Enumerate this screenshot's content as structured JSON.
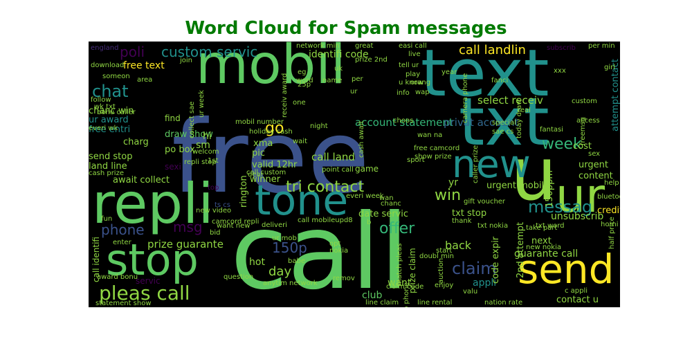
{
  "title": "Word Cloud for Spam messages",
  "colors": {
    "title": "#007a00",
    "background": "#000000",
    "palette": [
      "#3b528b",
      "#5ec962",
      "#21918c",
      "#fde725",
      "#2c728e",
      "#440154",
      "#31688e",
      "#35b779",
      "#90d743",
      "#472d7b"
    ]
  },
  "words": [
    "free",
    "call",
    "mobil",
    "text",
    "txt",
    "repli",
    "stop",
    "u",
    "ur",
    "tone",
    "send",
    "new",
    "pleas call",
    "custom servic",
    "chat",
    "claim",
    "tri contact",
    "messag",
    "call landlin",
    "msg",
    "150p",
    "phone",
    "offer",
    "week",
    "win",
    "go",
    "poli",
    "prize guarante",
    "guarante call",
    "free text",
    "select receiv",
    "account statement",
    "identifi code",
    "call land",
    "privat account",
    "unsubscrib",
    "appli",
    "back",
    "day",
    "hot",
    "want",
    "date servic",
    "sm",
    "charg",
    "chanc win",
    "ur award",
    "free entri",
    "send stop",
    "land line",
    "await collect",
    "draw show",
    "po box",
    "valid 12hr",
    "rington",
    "pic",
    "winner",
    "xma",
    "hi",
    "txt stop",
    "urgent mobil",
    "code expir",
    "2nd attempt",
    "attempt contact",
    "urgent",
    "content",
    "credit",
    "cost",
    "150ppm",
    "next",
    "contact u",
    "prize claim",
    "game",
    "servic",
    "sexi",
    "find",
    "easi call",
    "wap",
    "orang",
    "tell ur",
    "play",
    "camera phone",
    "caller prize",
    "mobil number",
    "holiday cash",
    "point call",
    "free camcord",
    "show prize",
    "yr",
    "call mobileupd8",
    "txt word",
    "new nokia",
    "txt nokia",
    "gift voucher",
    "take part",
    "half price",
    "help date",
    "bluetooth",
    "call identifi",
    "award bonu",
    "statement show",
    "anytim network",
    "club",
    "question",
    "babe",
    "line claim",
    "line rental",
    "nation rate",
    "c appli",
    "valu",
    "enjoy",
    "remov",
    "claim code",
    "match pleas",
    "video phone",
    "doubl min",
    "camcord repli",
    "new video",
    "want new",
    "deliveri",
    "ur mob",
    "bid",
    "enter",
    "ts cs",
    "top",
    "fun",
    "cash prize",
    "everi wk",
    "repli stop",
    "welcom",
    "dear",
    "wait",
    "night",
    "chanc",
    "everi week",
    "wan na",
    "choos",
    "sport",
    "receiv award",
    "network min",
    "great",
    "per min",
    "girl",
    "uk",
    "download",
    "someon",
    "follow",
    "join",
    "info",
    "live",
    "year",
    "eg",
    "word",
    "name",
    "one",
    "cash await",
    "special",
    "sae cs",
    "fantasi",
    "sex",
    "horni",
    "access",
    "custom",
    "freemsg",
    "today draw",
    "fanci",
    "real",
    "per",
    "25p",
    "ur week",
    "call custom",
    "1st",
    "b",
    "opt",
    "nokia",
    "start",
    "thank",
    "auction",
    "xxx",
    "subscrib",
    "collect sae",
    "england",
    "area",
    "wk txt",
    "bonu caller",
    "u know",
    "prize 2nd",
    "wan",
    "ur"
  ]
}
